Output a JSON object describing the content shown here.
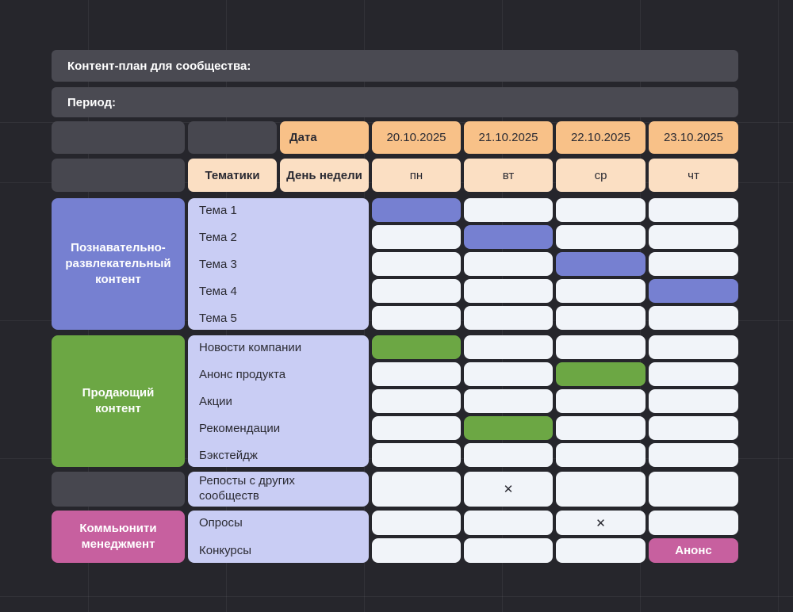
{
  "header": {
    "title": "Контент-план для сообщества:",
    "period": "Период:"
  },
  "table": {
    "headers": {
      "date": "Дата",
      "topics": "Тематики",
      "weekday": "День недели"
    },
    "dates": [
      "20.10.2025",
      "21.10.2025",
      "22.10.2025",
      "23.10.2025"
    ],
    "weekdays": [
      "пн",
      "вт",
      "ср",
      "чт"
    ],
    "groups": [
      {
        "name": "Познавательно-развлекательный контент",
        "color": "#7680d1",
        "topics": [
          "Тема 1",
          "Тема 2",
          "Тема 3",
          "Тема 4",
          "Тема 5"
        ],
        "cells": [
          [
            "filled",
            "",
            "",
            ""
          ],
          [
            "",
            "filled",
            "",
            ""
          ],
          [
            "",
            "",
            "filled",
            ""
          ],
          [
            "",
            "",
            "",
            "filled"
          ],
          [
            "",
            "",
            "",
            ""
          ]
        ]
      },
      {
        "name": "Продающий контент",
        "color": "#6ca744",
        "topics": [
          "Новости компании",
          "Анонс продукта",
          "Акции",
          "Рекомендации",
          "Бэкстейдж"
        ],
        "cells": [
          [
            "filled",
            "",
            "",
            ""
          ],
          [
            "",
            "",
            "filled",
            ""
          ],
          [
            "",
            "",
            "",
            ""
          ],
          [
            "",
            "filled",
            "",
            ""
          ],
          [
            "",
            "",
            "",
            ""
          ]
        ]
      }
    ],
    "reposts": {
      "topic": "Репосты с других сообществ",
      "cells": [
        "",
        "✕",
        "",
        ""
      ]
    },
    "community": {
      "name": "Коммьюнити менеджмент",
      "color": "#c7609f",
      "topics": [
        "Опросы",
        "Конкурсы"
      ],
      "cells": [
        [
          "",
          "",
          "✕",
          ""
        ],
        [
          "",
          "",
          "",
          "Анонс"
        ]
      ]
    }
  },
  "colors": {
    "background": "#26262c",
    "bar": "#4a4a52",
    "date_header": "#f8c188",
    "weekday_header": "#fbdfc3",
    "topics_column": "#c9cdf4",
    "empty_cell": "#f1f4f9",
    "edu_group": "#7680d1",
    "sales_group": "#6ca744",
    "community_group": "#c7609f",
    "dark_text": "#2b2b33"
  }
}
